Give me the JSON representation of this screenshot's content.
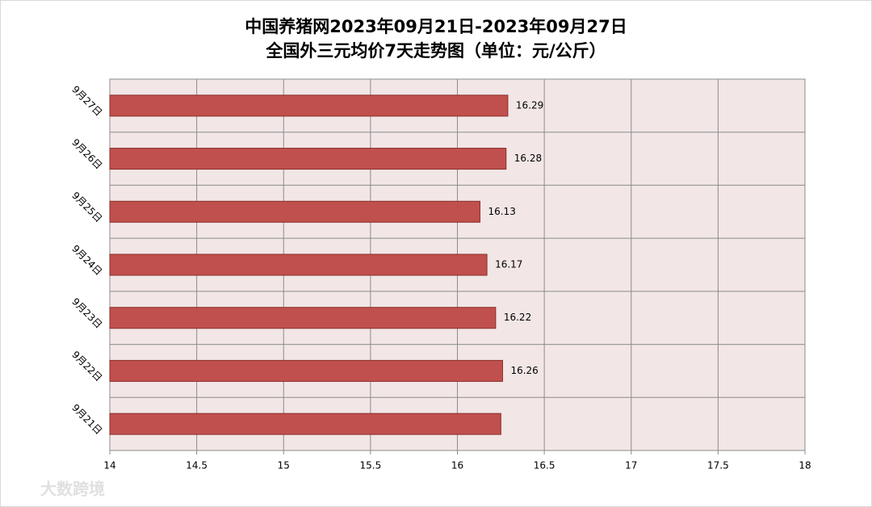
{
  "chart_data": {
    "type": "bar",
    "orientation": "horizontal",
    "title": "中国养猪网2023年09月21日-2023年09月27日",
    "subtitle": "全国外三元均价7天走势图（单位：元/公斤）",
    "categories": [
      "9月27日",
      "9月26日",
      "9月25日",
      "9月24日",
      "9月23日",
      "9月22日",
      "9月21日"
    ],
    "values": [
      16.29,
      16.28,
      16.13,
      16.17,
      16.22,
      16.26,
      16.25
    ],
    "value_labels": [
      "16.29",
      "16.28",
      "16.13",
      "16.17",
      "16.22",
      "16.26",
      null
    ],
    "color": "#c0504d",
    "xlim": [
      14,
      18
    ],
    "xticks": [
      14,
      14.5,
      15,
      15.5,
      16,
      16.5,
      17,
      17.5,
      18
    ],
    "grid": true,
    "watermark": "大数跨境"
  }
}
